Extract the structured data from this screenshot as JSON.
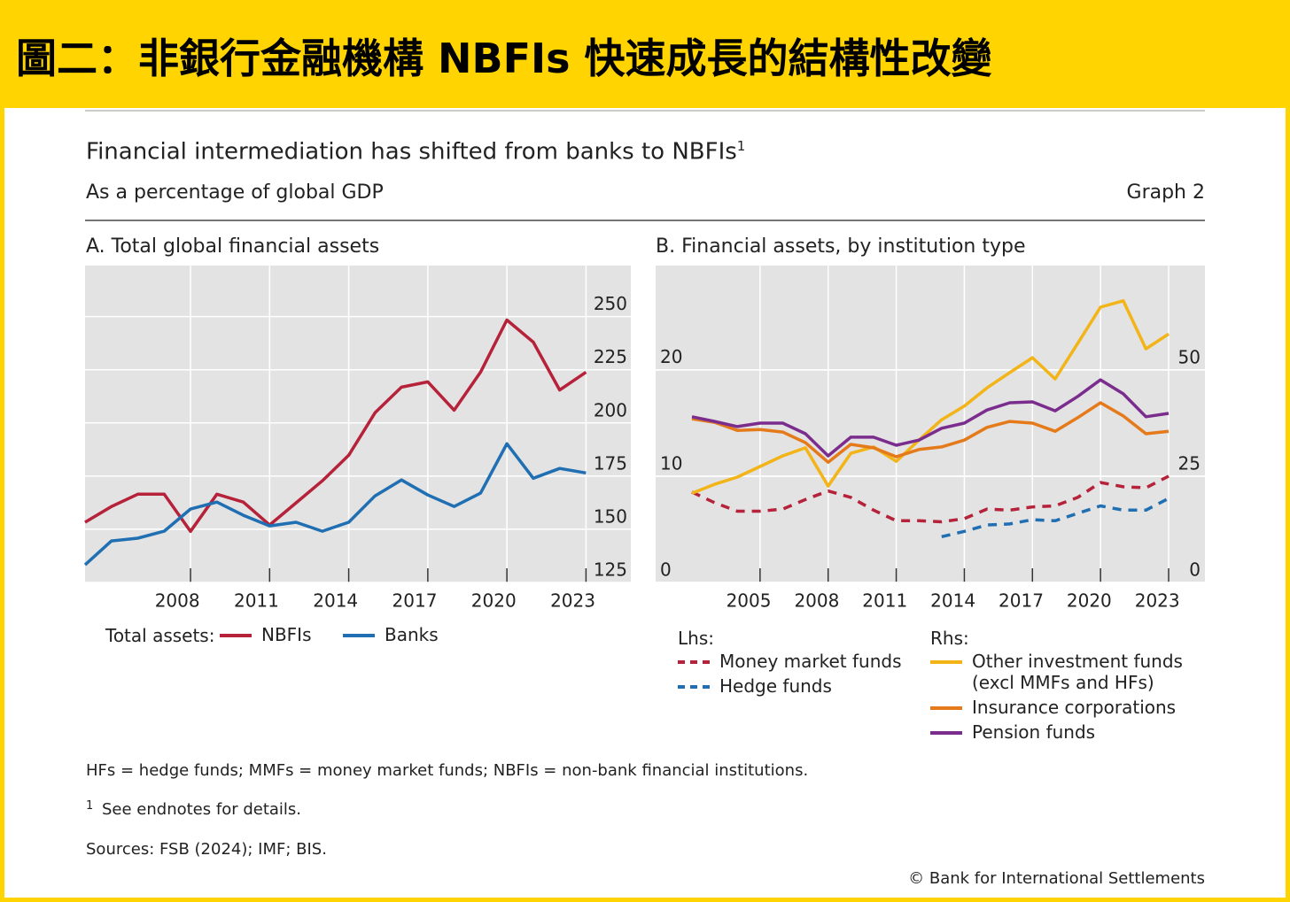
{
  "header": {
    "title": "圖二：非銀行金融機構 NBFIs 快速成長的結構性改變"
  },
  "figure": {
    "title": "Financial intermediation has shifted from banks to NBFIs",
    "title_note": "1",
    "subtitle": "As a percentage of global GDP",
    "graph_label": "Graph 2",
    "notes": "HFs = hedge funds; MMFs = money market funds; NBFIs = non-bank financial institutions.",
    "footnote_marker": "1",
    "footnote": "See endnotes for details.",
    "sources": "Sources: FSB (2024); IMF; BIS.",
    "copyright": "© Bank for International Settlements"
  },
  "chart_data": [
    {
      "type": "line",
      "title": "A. Total global financial assets",
      "legend_label": "Total assets:",
      "x": [
        2004,
        2005,
        2006,
        2007,
        2008,
        2009,
        2010,
        2011,
        2012,
        2013,
        2014,
        2015,
        2016,
        2017,
        2018,
        2019,
        2020,
        2021,
        2022,
        2023
      ],
      "xlim": [
        2004,
        2024.7
      ],
      "xticks": [
        2008,
        2011,
        2014,
        2017,
        2020,
        2023
      ],
      "ylim": [
        125,
        274
      ],
      "yticks": [
        125,
        150,
        175,
        200,
        225,
        250
      ],
      "grid": true,
      "series": [
        {
          "name": "NBFIs",
          "color": "#b5223a",
          "values": [
            153.3,
            160.7,
            166.5,
            166.5,
            149,
            166.5,
            162.8,
            152,
            162.4,
            172.8,
            184.8,
            204.8,
            216.8,
            219.3,
            206,
            223.9,
            248.4,
            238,
            215.5,
            223.9
          ]
        },
        {
          "name": "Banks",
          "color": "#1f6fb2",
          "values": [
            133.3,
            144.5,
            145.8,
            149.1,
            159.5,
            162.8,
            156.6,
            151.6,
            153.3,
            149.1,
            153.3,
            165.7,
            173.2,
            166.1,
            160.7,
            167,
            190.2,
            174,
            178.6,
            176.5
          ]
        }
      ]
    },
    {
      "type": "line",
      "title": "B. Financial assets, by institution type",
      "lhs_label": "Lhs:",
      "rhs_label": "Rhs:",
      "x": [
        2002,
        2003,
        2004,
        2005,
        2006,
        2007,
        2008,
        2009,
        2010,
        2011,
        2012,
        2013,
        2014,
        2015,
        2016,
        2017,
        2018,
        2019,
        2020,
        2021,
        2022,
        2023
      ],
      "xlim": [
        2000.4,
        2024.6
      ],
      "xticks": [
        2005,
        2008,
        2011,
        2014,
        2017,
        2020,
        2023
      ],
      "ylim": [
        0,
        29.8
      ],
      "yticks": [
        0,
        10,
        20
      ],
      "y2lim": [
        0,
        74.6
      ],
      "y2ticks": [
        0,
        25,
        50
      ],
      "grid": true,
      "series": [
        {
          "name": "Money market funds",
          "color": "#b5223a",
          "dashed": true,
          "values": [
            8.5,
            7.5,
            6.7,
            6.7,
            6.9,
            7.8,
            8.6,
            8,
            6.8,
            5.8,
            5.8,
            5.7,
            6,
            6.9,
            6.8,
            7.1,
            7.2,
            8,
            9.4,
            9,
            8.9,
            10
          ]
        },
        {
          "name": "Hedge funds",
          "color": "#1f6fb2",
          "dashed": true,
          "values": [
            null,
            null,
            null,
            null,
            null,
            null,
            null,
            null,
            null,
            null,
            null,
            4.3,
            4.8,
            5.4,
            5.5,
            5.9,
            5.8,
            6.5,
            7.2,
            6.8,
            6.8,
            7.9
          ]
        },
        {
          "name": "Other investment funds (excl MMFs and HFs)",
          "color": "#f2b417",
          "axis": "y2",
          "values": [
            21,
            23.1,
            24.8,
            27.3,
            29.8,
            31.7,
            22.7,
            30.4,
            31.9,
            28.5,
            33.5,
            38.3,
            41.5,
            45.8,
            49.4,
            52.9,
            47.9,
            56.3,
            64.8,
            66.3,
            55,
            58.5
          ]
        },
        {
          "name": "Insurance corporations",
          "color": "#e57a1a",
          "axis": "y2",
          "values": [
            38.5,
            37.7,
            35.8,
            36,
            35.4,
            32.9,
            28.3,
            32.5,
            31.7,
            29.6,
            31.3,
            31.9,
            33.5,
            36.5,
            37.9,
            37.5,
            35.6,
            38.8,
            42.3,
            39.2,
            35,
            35.6
          ]
        },
        {
          "name": "Pension funds",
          "color": "#7b2d8e",
          "axis": "y2",
          "values": [
            39,
            37.9,
            36.7,
            37.5,
            37.5,
            35,
            29.8,
            34.2,
            34.2,
            32.3,
            33.5,
            36.3,
            37.5,
            40.6,
            42.3,
            42.5,
            40.4,
            43.8,
            47.7,
            44.4,
            39,
            39.8
          ]
        }
      ]
    }
  ]
}
